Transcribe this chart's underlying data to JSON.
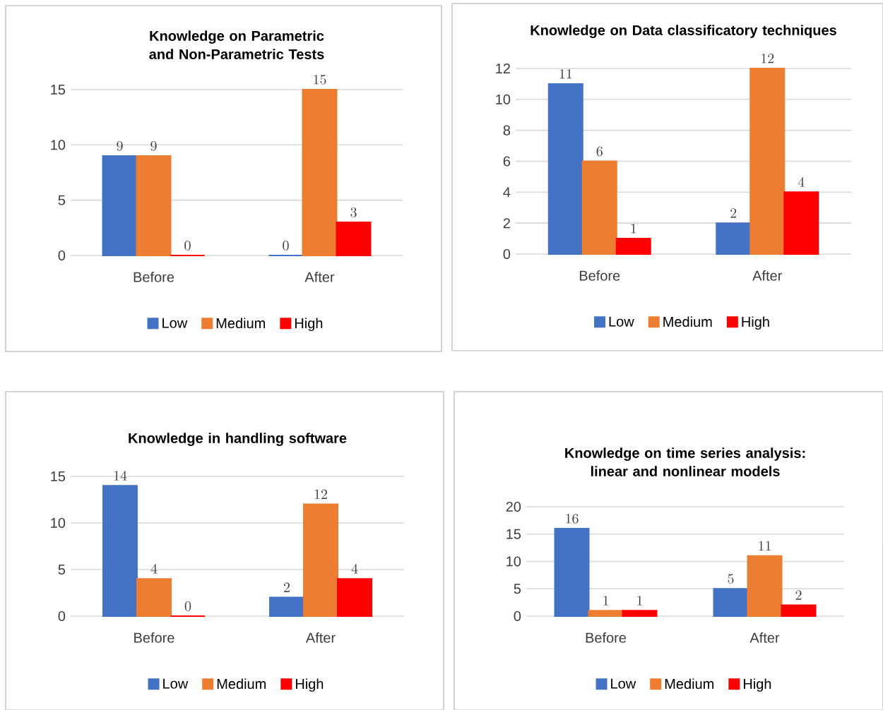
{
  "chart_data": [
    {
      "type": "bar",
      "title": "Knowledge on Parametric and Non-Parametric Tests",
      "categories": [
        "Before",
        "After"
      ],
      "series": [
        {
          "name": "Low",
          "color": "#4472c4",
          "values": [
            9,
            0
          ]
        },
        {
          "name": "Medium",
          "color": "#ed7d31",
          "values": [
            9,
            15
          ]
        },
        {
          "name": "High",
          "color": "#ff0000",
          "values": [
            0,
            3
          ]
        }
      ],
      "ylim": [
        0,
        15
      ],
      "yticks": [
        0,
        5,
        10,
        15
      ],
      "grid": "y",
      "legend": "bottom",
      "data_labels": true
    },
    {
      "type": "bar",
      "title": "Knowledge on Data classificatory techniques",
      "categories": [
        "Before",
        "After"
      ],
      "series": [
        {
          "name": "Low",
          "color": "#4472c4",
          "values": [
            11,
            2
          ]
        },
        {
          "name": "Medium",
          "color": "#ed7d31",
          "values": [
            6,
            12
          ]
        },
        {
          "name": "High",
          "color": "#ff0000",
          "values": [
            1,
            4
          ]
        }
      ],
      "ylim": [
        0,
        12
      ],
      "yticks": [
        0,
        2,
        4,
        6,
        8,
        10,
        12
      ],
      "grid": "y",
      "legend": "bottom",
      "data_labels": true
    },
    {
      "type": "bar",
      "title": "Knowledge in handling software",
      "categories": [
        "Before",
        "After"
      ],
      "series": [
        {
          "name": "Low",
          "color": "#4472c4",
          "values": [
            14,
            2
          ]
        },
        {
          "name": "Medium",
          "color": "#ed7d31",
          "values": [
            4,
            12
          ]
        },
        {
          "name": "High",
          "color": "#ff0000",
          "values": [
            0,
            4
          ]
        }
      ],
      "ylim": [
        0,
        15
      ],
      "yticks": [
        0,
        5,
        10,
        15
      ],
      "grid": "y",
      "legend": "bottom",
      "data_labels": true
    },
    {
      "type": "bar",
      "title": "Knowledge on time series analysis: linear and nonlinear models",
      "categories": [
        "Before",
        "After"
      ],
      "series": [
        {
          "name": "Low",
          "color": "#4472c4",
          "values": [
            16,
            5
          ]
        },
        {
          "name": "Medium",
          "color": "#ed7d31",
          "values": [
            1,
            11
          ]
        },
        {
          "name": "High",
          "color": "#ff0000",
          "values": [
            1,
            2
          ]
        }
      ],
      "ylim": [
        0,
        20
      ],
      "yticks": [
        0,
        5,
        10,
        15,
        20
      ],
      "grid": "y",
      "legend": "bottom",
      "data_labels": true
    }
  ]
}
